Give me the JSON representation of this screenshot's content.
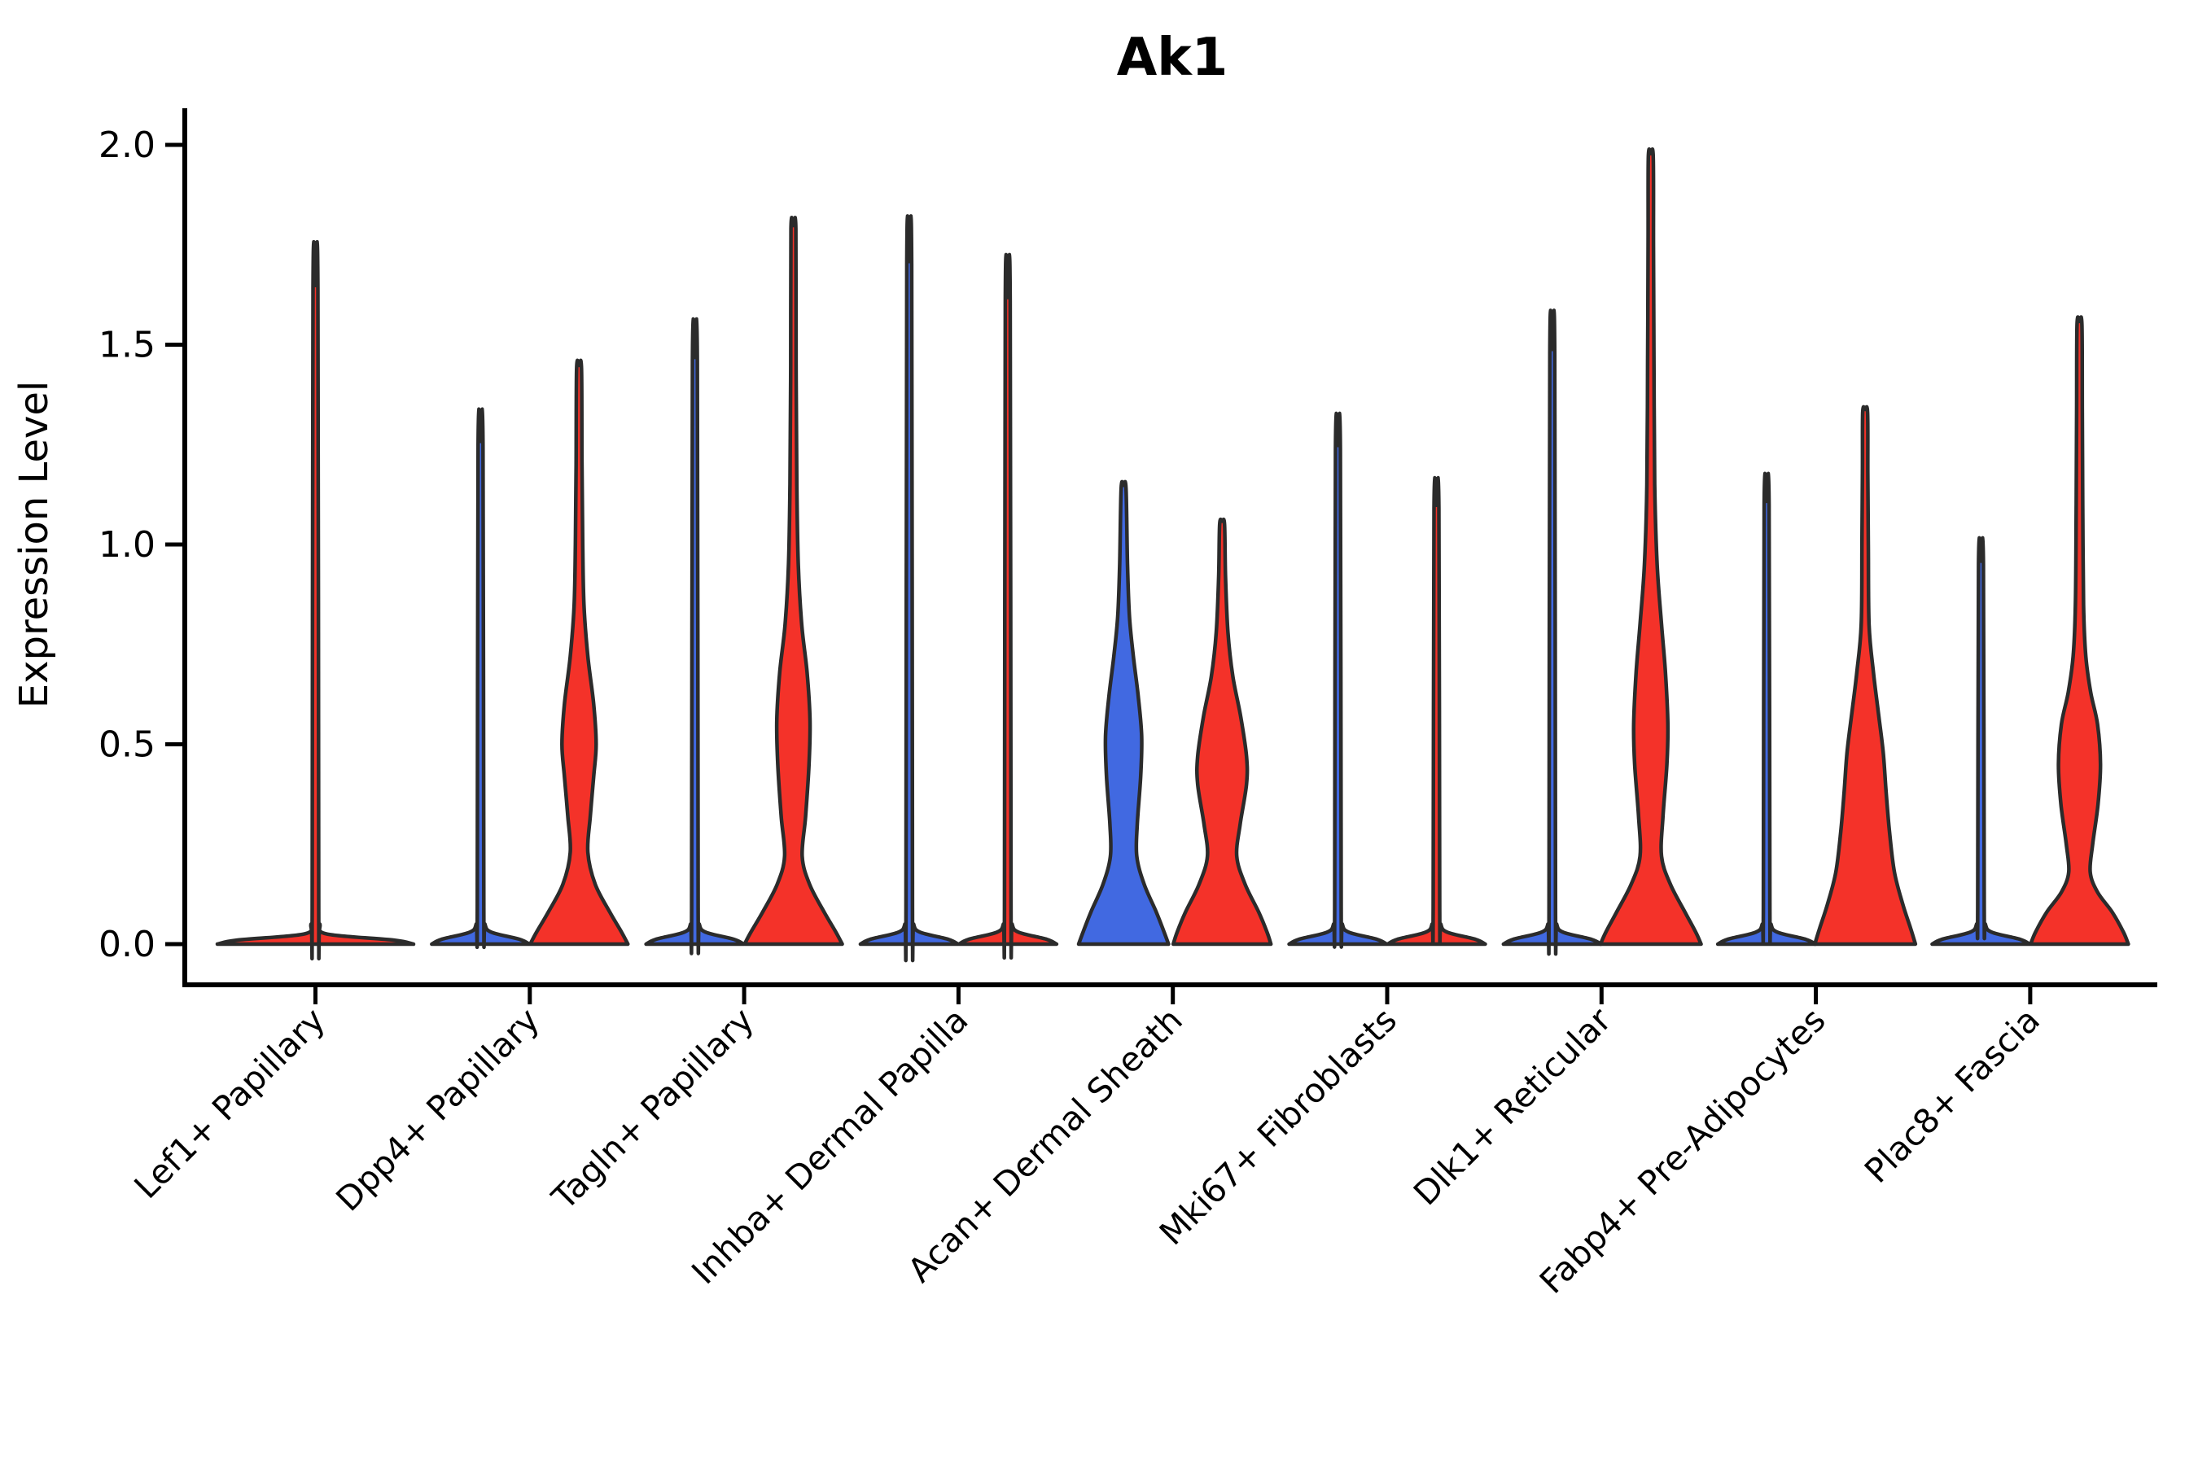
{
  "title": "Ak1",
  "ylabel": "Expression Level",
  "colors": {
    "red": "#F43229",
    "blue": "#4169E1",
    "outline": "#2B2B2B",
    "axis": "#000000"
  },
  "chart_data": {
    "type": "violin",
    "title": "Ak1",
    "xlabel": "",
    "ylabel": "Expression Level",
    "ylim": [
      0,
      2.05
    ],
    "grid": false,
    "legend": "none",
    "yticks": [
      {
        "v": 0.0,
        "label": "0.0"
      },
      {
        "v": 0.5,
        "label": "0.5"
      },
      {
        "v": 1.0,
        "label": "1.0"
      },
      {
        "v": 1.5,
        "label": "1.5"
      },
      {
        "v": 2.0,
        "label": "2.0"
      }
    ],
    "categories": [
      "Lef1+ Papillary",
      "Dpp4+ Papillary",
      "Tagln+ Papillary",
      "Inhba+ Dermal Papilla",
      "Acan+ Dermal Sheath",
      "Mki67+ Fibroblasts",
      "Dlk1+ Reticular",
      "Fabp4+ Pre-Adipocytes",
      "Plac8+ Fascia"
    ],
    "violins": [
      {
        "category": "Lef1+ Papillary",
        "side": "center",
        "color": "red",
        "max": 1.64,
        "collapsed": true,
        "profile": [
          [
            0,
            1.0
          ],
          [
            0.01,
            0.8
          ],
          [
            0.025,
            0.12
          ],
          [
            0.05,
            0.045
          ],
          [
            0.09,
            0.033
          ],
          [
            1.64,
            0.025
          ]
        ]
      },
      {
        "category": "Dpp4+ Papillary",
        "side": "left",
        "color": "blue",
        "max": 1.25,
        "collapsed": true,
        "profile": [
          [
            0,
            1.0
          ],
          [
            0.012,
            0.8
          ],
          [
            0.03,
            0.22
          ],
          [
            0.05,
            0.09
          ],
          [
            0.09,
            0.067
          ],
          [
            1.25,
            0.05
          ]
        ]
      },
      {
        "category": "Dpp4+ Papillary",
        "side": "right",
        "color": "red",
        "max": 1.44,
        "collapsed": false,
        "profile": [
          [
            0,
            1.0
          ],
          [
            0.03,
            0.87
          ],
          [
            0.08,
            0.63
          ],
          [
            0.15,
            0.33
          ],
          [
            0.23,
            0.18
          ],
          [
            0.32,
            0.23
          ],
          [
            0.42,
            0.3
          ],
          [
            0.5,
            0.35
          ],
          [
            0.6,
            0.3
          ],
          [
            0.72,
            0.18
          ],
          [
            0.85,
            0.1
          ],
          [
            1.0,
            0.075
          ],
          [
            1.2,
            0.06
          ],
          [
            1.44,
            0.05
          ]
        ]
      },
      {
        "category": "Tagln+ Papillary",
        "side": "left",
        "color": "blue",
        "max": 1.46,
        "collapsed": true,
        "profile": [
          [
            0,
            1.0
          ],
          [
            0.012,
            0.8
          ],
          [
            0.03,
            0.22
          ],
          [
            0.05,
            0.09
          ],
          [
            0.09,
            0.067
          ],
          [
            1.46,
            0.05
          ]
        ]
      },
      {
        "category": "Tagln+ Papillary",
        "side": "right",
        "color": "red",
        "max": 1.79,
        "collapsed": false,
        "profile": [
          [
            0,
            1.0
          ],
          [
            0.03,
            0.87
          ],
          [
            0.08,
            0.63
          ],
          [
            0.15,
            0.33
          ],
          [
            0.22,
            0.18
          ],
          [
            0.32,
            0.25
          ],
          [
            0.45,
            0.32
          ],
          [
            0.56,
            0.34
          ],
          [
            0.68,
            0.28
          ],
          [
            0.8,
            0.17
          ],
          [
            0.95,
            0.1
          ],
          [
            1.15,
            0.07
          ],
          [
            1.45,
            0.055
          ],
          [
            1.79,
            0.05
          ]
        ]
      },
      {
        "category": "Inhba+ Dermal Papilla",
        "side": "left",
        "color": "blue",
        "max": 1.7,
        "collapsed": true,
        "profile": [
          [
            0,
            1.0
          ],
          [
            0.012,
            0.8
          ],
          [
            0.03,
            0.22
          ],
          [
            0.05,
            0.09
          ],
          [
            0.09,
            0.067
          ],
          [
            1.7,
            0.05
          ]
        ]
      },
      {
        "category": "Inhba+ Dermal Papilla",
        "side": "right",
        "color": "red",
        "max": 1.61,
        "collapsed": true,
        "profile": [
          [
            0,
            1.0
          ],
          [
            0.012,
            0.8
          ],
          [
            0.03,
            0.22
          ],
          [
            0.05,
            0.09
          ],
          [
            0.09,
            0.067
          ],
          [
            1.61,
            0.05
          ]
        ]
      },
      {
        "category": "Acan+ Dermal Sheath",
        "side": "left",
        "color": "blue",
        "max": 1.14,
        "collapsed": false,
        "profile": [
          [
            0,
            0.92
          ],
          [
            0.03,
            0.83
          ],
          [
            0.08,
            0.67
          ],
          [
            0.15,
            0.42
          ],
          [
            0.22,
            0.27
          ],
          [
            0.3,
            0.28
          ],
          [
            0.42,
            0.35
          ],
          [
            0.52,
            0.37
          ],
          [
            0.62,
            0.3
          ],
          [
            0.72,
            0.2
          ],
          [
            0.82,
            0.12
          ],
          [
            0.95,
            0.08
          ],
          [
            1.14,
            0.05
          ]
        ]
      },
      {
        "category": "Acan+ Dermal Sheath",
        "side": "right",
        "color": "red",
        "max": 1.05,
        "collapsed": false,
        "profile": [
          [
            0,
            1.0
          ],
          [
            0.03,
            0.92
          ],
          [
            0.08,
            0.75
          ],
          [
            0.15,
            0.47
          ],
          [
            0.22,
            0.3
          ],
          [
            0.3,
            0.37
          ],
          [
            0.4,
            0.5
          ],
          [
            0.47,
            0.5
          ],
          [
            0.57,
            0.38
          ],
          [
            0.67,
            0.22
          ],
          [
            0.78,
            0.12
          ],
          [
            0.92,
            0.07
          ],
          [
            1.05,
            0.05
          ]
        ]
      },
      {
        "category": "Mki67+ Fibroblasts",
        "side": "left",
        "color": "blue",
        "max": 1.24,
        "collapsed": true,
        "profile": [
          [
            0,
            1.0
          ],
          [
            0.012,
            0.8
          ],
          [
            0.03,
            0.22
          ],
          [
            0.05,
            0.09
          ],
          [
            0.09,
            0.067
          ],
          [
            1.24,
            0.05
          ]
        ]
      },
      {
        "category": "Mki67+ Fibroblasts",
        "side": "right",
        "color": "red",
        "max": 1.09,
        "collapsed": true,
        "profile": [
          [
            0,
            1.0
          ],
          [
            0.012,
            0.8
          ],
          [
            0.03,
            0.22
          ],
          [
            0.05,
            0.09
          ],
          [
            0.09,
            0.067
          ],
          [
            1.09,
            0.05
          ]
        ]
      },
      {
        "category": "Dlk1+ Reticular",
        "side": "left",
        "color": "blue",
        "max": 1.48,
        "collapsed": true,
        "profile": [
          [
            0,
            1.0
          ],
          [
            0.012,
            0.8
          ],
          [
            0.03,
            0.22
          ],
          [
            0.05,
            0.09
          ],
          [
            0.09,
            0.067
          ],
          [
            1.48,
            0.05
          ]
        ]
      },
      {
        "category": "Dlk1+ Reticular",
        "side": "right",
        "color": "red",
        "max": 1.97,
        "collapsed": false,
        "profile": [
          [
            0,
            1.03
          ],
          [
            0.03,
            0.92
          ],
          [
            0.08,
            0.7
          ],
          [
            0.15,
            0.4
          ],
          [
            0.22,
            0.22
          ],
          [
            0.32,
            0.25
          ],
          [
            0.45,
            0.33
          ],
          [
            0.55,
            0.35
          ],
          [
            0.68,
            0.3
          ],
          [
            0.8,
            0.22
          ],
          [
            0.95,
            0.13
          ],
          [
            1.15,
            0.08
          ],
          [
            1.45,
            0.065
          ],
          [
            1.75,
            0.055
          ],
          [
            1.97,
            0.05
          ]
        ]
      },
      {
        "category": "Fabp4+ Pre-Adipocytes",
        "side": "left",
        "color": "blue",
        "max": 1.1,
        "collapsed": true,
        "profile": [
          [
            0,
            1.0
          ],
          [
            0.012,
            0.8
          ],
          [
            0.03,
            0.22
          ],
          [
            0.05,
            0.09
          ],
          [
            0.09,
            0.067
          ],
          [
            1.1,
            0.05
          ]
        ]
      },
      {
        "category": "Fabp4+ Pre-Adipocytes",
        "side": "right",
        "color": "red",
        "max": 1.33,
        "collapsed": false,
        "profile": [
          [
            0,
            1.03
          ],
          [
            0.04,
            0.93
          ],
          [
            0.1,
            0.77
          ],
          [
            0.18,
            0.6
          ],
          [
            0.28,
            0.5
          ],
          [
            0.38,
            0.43
          ],
          [
            0.48,
            0.37
          ],
          [
            0.58,
            0.27
          ],
          [
            0.68,
            0.17
          ],
          [
            0.8,
            0.08
          ],
          [
            1.0,
            0.065
          ],
          [
            1.18,
            0.055
          ],
          [
            1.33,
            0.05
          ]
        ]
      },
      {
        "category": "Plac8+ Fascia",
        "side": "left",
        "color": "blue",
        "max": 0.95,
        "collapsed": true,
        "profile": [
          [
            0,
            1.0
          ],
          [
            0.012,
            0.8
          ],
          [
            0.03,
            0.22
          ],
          [
            0.05,
            0.09
          ],
          [
            0.09,
            0.067
          ],
          [
            0.95,
            0.05
          ]
        ]
      },
      {
        "category": "Plac8+ Fascia",
        "side": "right",
        "color": "red",
        "max": 1.55,
        "collapsed": false,
        "profile": [
          [
            0,
            1.0
          ],
          [
            0.03,
            0.9
          ],
          [
            0.08,
            0.67
          ],
          [
            0.13,
            0.37
          ],
          [
            0.18,
            0.22
          ],
          [
            0.25,
            0.27
          ],
          [
            0.35,
            0.38
          ],
          [
            0.45,
            0.43
          ],
          [
            0.55,
            0.37
          ],
          [
            0.63,
            0.23
          ],
          [
            0.72,
            0.13
          ],
          [
            0.85,
            0.083
          ],
          [
            1.1,
            0.067
          ],
          [
            1.33,
            0.058
          ],
          [
            1.55,
            0.05
          ]
        ]
      }
    ]
  }
}
